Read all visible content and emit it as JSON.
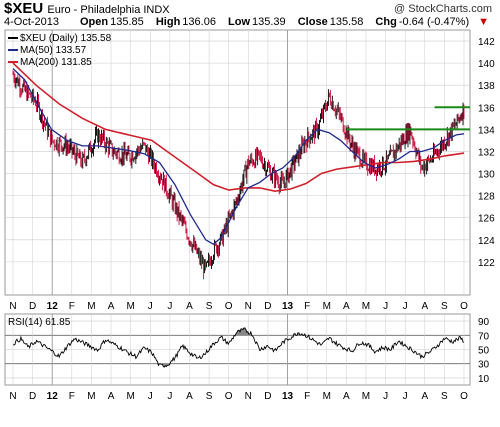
{
  "header": {
    "symbol": "$XEU",
    "name": "Euro - Philadelphia INDX",
    "watermark": "@ StockCharts.com",
    "date": "4-Oct-2013",
    "open_label": "Open",
    "open": "135.85",
    "high_label": "High",
    "high": "136.06",
    "low_label": "Low",
    "low": "135.39",
    "close_label": "Close",
    "close": "135.58",
    "chg_label": "Chg",
    "chg": "-0.64 (-0.47%)",
    "arrow": "▼"
  },
  "legend": {
    "main": "$XEU (Daily) 135.58",
    "ma50": "MA(50) 133.57",
    "ma200": "MA(200) 131.85",
    "rsi": "RSI(14) 61.85"
  },
  "colors": {
    "price_up": "#000000",
    "price_down": "#cc0033",
    "ma50": "#1f2a8c",
    "ma200": "#d0202c",
    "resistance": "#1a8a1a",
    "grid": "#cccccc",
    "rsi": "#000000",
    "rsi_fill": "#888888"
  },
  "chart_data": [
    {
      "type": "ohlc",
      "title": "$XEU (Daily) 135.58",
      "ylim": [
        119,
        143
      ],
      "yticks": [
        122,
        124,
        126,
        128,
        130,
        132,
        134,
        136,
        138,
        140,
        142
      ],
      "x_ticks": [
        "N",
        "D",
        "12",
        "F",
        "M",
        "A",
        "M",
        "J",
        "J",
        "A",
        "S",
        "O",
        "N",
        "D",
        "13",
        "F",
        "M",
        "A",
        "M",
        "J",
        "J",
        "A",
        "S",
        "O"
      ],
      "x_range": [
        "2011-11",
        "2013-10"
      ],
      "price_path": [
        [
          0,
          139
        ],
        [
          3,
          137.5
        ],
        [
          6,
          136.5
        ],
        [
          10,
          133
        ],
        [
          14,
          132.5
        ],
        [
          18,
          131
        ],
        [
          22,
          133.5
        ],
        [
          26,
          132
        ],
        [
          30,
          131.5
        ],
        [
          34,
          132.5
        ],
        [
          38,
          130
        ],
        [
          42,
          127
        ],
        [
          46,
          124
        ],
        [
          50,
          121.2
        ],
        [
          52,
          123
        ],
        [
          54,
          124
        ],
        [
          58,
          127.5
        ],
        [
          61,
          131
        ],
        [
          64,
          131.5
        ],
        [
          67,
          130
        ],
        [
          70,
          129
        ],
        [
          73,
          131
        ],
        [
          76,
          133
        ],
        [
          79,
          134
        ],
        [
          82,
          137
        ],
        [
          85,
          135
        ],
        [
          88,
          132.5
        ],
        [
          91,
          131
        ],
        [
          94,
          130.5
        ],
        [
          97,
          131
        ],
        [
          100,
          132.5
        ],
        [
          103,
          134
        ],
        [
          106,
          130.5
        ],
        [
          109,
          131.5
        ],
        [
          112,
          133
        ],
        [
          115,
          134.5
        ],
        [
          117,
          136
        ]
      ],
      "ma50_path": [
        [
          0,
          139.5
        ],
        [
          3,
          138.5
        ],
        [
          6,
          136.5
        ],
        [
          10,
          134
        ],
        [
          14,
          133
        ],
        [
          18,
          132.5
        ],
        [
          22,
          132.5
        ],
        [
          26,
          132.3
        ],
        [
          30,
          132.1
        ],
        [
          34,
          131.8
        ],
        [
          38,
          131
        ],
        [
          42,
          129
        ],
        [
          46,
          126.3
        ],
        [
          50,
          124
        ],
        [
          52,
          123.6
        ],
        [
          54,
          124.2
        ],
        [
          58,
          127
        ],
        [
          61,
          128.7
        ],
        [
          64,
          129.2
        ],
        [
          67,
          130
        ],
        [
          70,
          130.5
        ],
        [
          73,
          131.5
        ],
        [
          76,
          133
        ],
        [
          79,
          134
        ],
        [
          82,
          133.7
        ],
        [
          85,
          133
        ],
        [
          88,
          132
        ],
        [
          91,
          131
        ],
        [
          94,
          130.5
        ],
        [
          97,
          130.8
        ],
        [
          100,
          131.3
        ],
        [
          103,
          132
        ],
        [
          106,
          132
        ],
        [
          109,
          132.3
        ],
        [
          112,
          133
        ],
        [
          115,
          133.5
        ],
        [
          117,
          133.6
        ]
      ],
      "ma200_path": [
        [
          0,
          140
        ],
        [
          6,
          138
        ],
        [
          12,
          136.3
        ],
        [
          18,
          135
        ],
        [
          24,
          134
        ],
        [
          30,
          133.5
        ],
        [
          36,
          133
        ],
        [
          40,
          132
        ],
        [
          44,
          131
        ],
        [
          48,
          130
        ],
        [
          52,
          129
        ],
        [
          56,
          128.5
        ],
        [
          60,
          128.7
        ],
        [
          64,
          128.7
        ],
        [
          68,
          128.4
        ],
        [
          72,
          128.6
        ],
        [
          76,
          129.1
        ],
        [
          80,
          130
        ],
        [
          84,
          130.4
        ],
        [
          88,
          130.6
        ],
        [
          92,
          130.8
        ],
        [
          96,
          131
        ],
        [
          100,
          131
        ],
        [
          104,
          131.1
        ],
        [
          108,
          131.3
        ],
        [
          112,
          131.6
        ],
        [
          117,
          131.85
        ]
      ],
      "resistance_lines": [
        {
          "from": 21.5,
          "to": 30,
          "level": 136
        },
        {
          "from": 17,
          "to": 30,
          "level": 134
        }
      ]
    },
    {
      "type": "line",
      "title": "RSI(14) 61.85",
      "ylim": [
        0,
        100
      ],
      "yticks": [
        10,
        30,
        50,
        70,
        90
      ],
      "bands": [
        30,
        70
      ],
      "rsi_path": [
        [
          0,
          58
        ],
        [
          2,
          65
        ],
        [
          4,
          53
        ],
        [
          6,
          62
        ],
        [
          8,
          55
        ],
        [
          10,
          48
        ],
        [
          12,
          40
        ],
        [
          14,
          54
        ],
        [
          16,
          65
        ],
        [
          18,
          60
        ],
        [
          20,
          55
        ],
        [
          22,
          49
        ],
        [
          24,
          64
        ],
        [
          26,
          58
        ],
        [
          28,
          52
        ],
        [
          30,
          45
        ],
        [
          32,
          40
        ],
        [
          34,
          52
        ],
        [
          36,
          46
        ],
        [
          38,
          27
        ],
        [
          40,
          28
        ],
        [
          42,
          38
        ],
        [
          44,
          55
        ],
        [
          46,
          45
        ],
        [
          48,
          37
        ],
        [
          50,
          45
        ],
        [
          52,
          58
        ],
        [
          54,
          67
        ],
        [
          56,
          58
        ],
        [
          58,
          74
        ],
        [
          60,
          78
        ],
        [
          62,
          72
        ],
        [
          64,
          50
        ],
        [
          66,
          55
        ],
        [
          68,
          48
        ],
        [
          70,
          60
        ],
        [
          72,
          67
        ],
        [
          74,
          74
        ],
        [
          76,
          70
        ],
        [
          78,
          63
        ],
        [
          80,
          56
        ],
        [
          82,
          66
        ],
        [
          84,
          58
        ],
        [
          86,
          52
        ],
        [
          88,
          48
        ],
        [
          90,
          60
        ],
        [
          92,
          57
        ],
        [
          94,
          47
        ],
        [
          96,
          53
        ],
        [
          98,
          50
        ],
        [
          100,
          62
        ],
        [
          102,
          55
        ],
        [
          104,
          48
        ],
        [
          106,
          40
        ],
        [
          108,
          46
        ],
        [
          110,
          55
        ],
        [
          112,
          66
        ],
        [
          114,
          61
        ],
        [
          116,
          66
        ],
        [
          117,
          62
        ]
      ]
    }
  ]
}
